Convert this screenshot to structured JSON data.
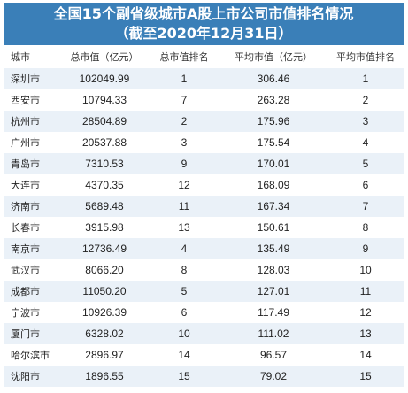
{
  "title": {
    "line1": "全国15个副省级城市A股上市公司市值排名情况",
    "line2": "（截至2020年12月31日）"
  },
  "table": {
    "headers": [
      "城市",
      "总市值（亿元）",
      "总市值排名",
      "平均市值（亿元）",
      "平均市值排名"
    ],
    "rows": [
      [
        "深圳市",
        "102049.99",
        "1",
        "306.46",
        "1"
      ],
      [
        "西安市",
        "10794.33",
        "7",
        "263.28",
        "2"
      ],
      [
        "杭州市",
        "28504.89",
        "2",
        "175.96",
        "3"
      ],
      [
        "广州市",
        "20537.88",
        "3",
        "175.54",
        "4"
      ],
      [
        "青岛市",
        "7310.53",
        "9",
        "170.01",
        "5"
      ],
      [
        "大连市",
        "4370.35",
        "12",
        "168.09",
        "6"
      ],
      [
        "济南市",
        "5689.48",
        "11",
        "167.34",
        "7"
      ],
      [
        "长春市",
        "3915.98",
        "13",
        "150.61",
        "8"
      ],
      [
        "南京市",
        "12736.49",
        "4",
        "135.49",
        "9"
      ],
      [
        "武汉市",
        "8066.20",
        "8",
        "128.03",
        "10"
      ],
      [
        "成都市",
        "11050.20",
        "5",
        "127.01",
        "11"
      ],
      [
        "宁波市",
        "10926.39",
        "6",
        "117.49",
        "12"
      ],
      [
        "厦门市",
        "6328.02",
        "10",
        "111.02",
        "13"
      ],
      [
        "哈尔滨市",
        "2896.97",
        "14",
        "96.57",
        "14"
      ],
      [
        "沈阳市",
        "1896.55",
        "15",
        "79.02",
        "15"
      ]
    ]
  },
  "colors": {
    "title_background": "#3a7fb8",
    "stripe": "#eaf1f8"
  }
}
